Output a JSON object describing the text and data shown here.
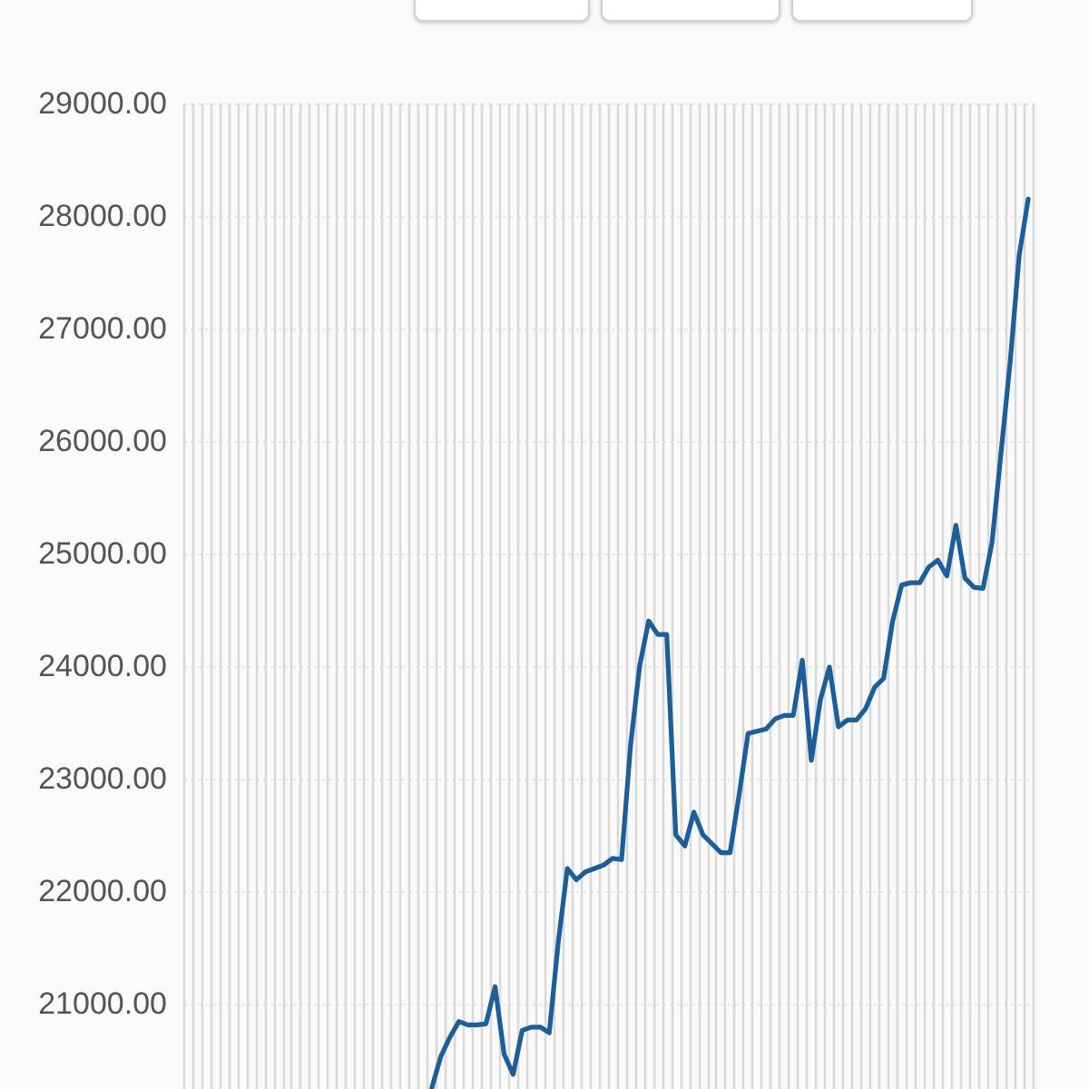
{
  "chart_data": {
    "type": "line",
    "categories": [
      null,
      null,
      null,
      null,
      null,
      null,
      null,
      null,
      null,
      null,
      null,
      null,
      null,
      null,
      null,
      null,
      null,
      null,
      null,
      null,
      null,
      null,
      null,
      null,
      null,
      null,
      null,
      null,
      null,
      null,
      null,
      null,
      null,
      null,
      null,
      null,
      null,
      null,
      null,
      null,
      null,
      null,
      null,
      null,
      null,
      null,
      null,
      null,
      null,
      null,
      null,
      null,
      null,
      null,
      null,
      null,
      null,
      null,
      null,
      null,
      null,
      null,
      null,
      null,
      null,
      null,
      null,
      null,
      null,
      null,
      null,
      null,
      null,
      null,
      null,
      null,
      null,
      null,
      null,
      null,
      null,
      null,
      null,
      null,
      null,
      null,
      null,
      null,
      null,
      null,
      null,
      null,
      null,
      null
    ],
    "series": [
      {
        "color": "#1b5e98",
        "values": [
          null,
          null,
          null,
          null,
          null,
          null,
          null,
          null,
          null,
          null,
          null,
          null,
          null,
          null,
          null,
          null,
          null,
          null,
          null,
          null,
          null,
          null,
          null,
          null,
          null,
          null,
          null,
          20250,
          20530,
          20700,
          20840,
          20810,
          20810,
          20820,
          21150,
          20550,
          20370,
          20760,
          20790,
          20790,
          20740,
          21550,
          22200,
          22100,
          22170,
          22200,
          22230,
          22290,
          22280,
          23300,
          24000,
          24400,
          24280,
          24280,
          22500,
          22400,
          22700,
          22500,
          22420,
          22340,
          22340,
          22850,
          23400,
          23420,
          23440,
          23530,
          23560,
          23560,
          24050,
          23160,
          23700,
          23990,
          23460,
          23520,
          23520,
          23620,
          23810,
          23890,
          24400,
          24720,
          24740,
          24740,
          24880,
          24940,
          24800,
          25250,
          24780,
          24700,
          24690,
          25100,
          25900,
          26700,
          27650,
          28150
        ]
      }
    ],
    "ylim": [
      20240,
      29000
    ],
    "yticks": [
      {
        "value": 21000,
        "label": "21000.00"
      },
      {
        "value": 22000,
        "label": "22000.00"
      },
      {
        "value": 23000,
        "label": "23000.00"
      },
      {
        "value": 24000,
        "label": "24000.00"
      },
      {
        "value": 25000,
        "label": "25000.00"
      },
      {
        "value": 26000,
        "label": "26000.00"
      },
      {
        "value": 27000,
        "label": "27000.00"
      },
      {
        "value": 28000,
        "label": "28000.00"
      },
      {
        "value": 29000,
        "label": "29000.00"
      }
    ],
    "grid": true,
    "tick_labels": "y",
    "marker": "none",
    "line_style": "solid"
  }
}
